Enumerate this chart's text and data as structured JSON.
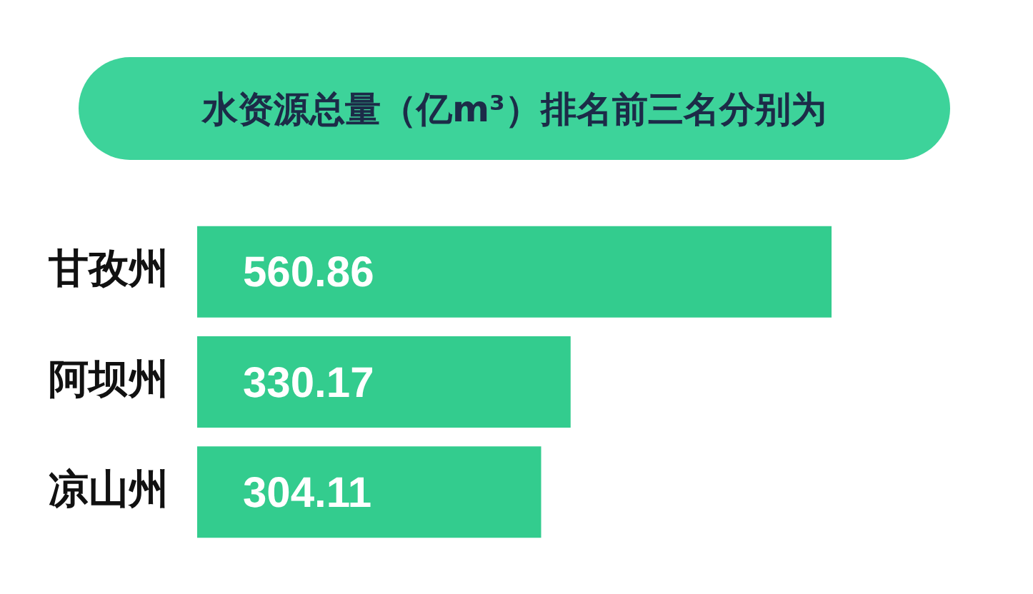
{
  "chart_data": {
    "type": "bar",
    "orientation": "horizontal",
    "title": "水资源总量（亿m³）排名前三名分别为",
    "categories": [
      "甘孜州",
      "阿坝州",
      "凉山州"
    ],
    "values": [
      560.86,
      330.17,
      304.11
    ],
    "color": "#33cc8e",
    "data_labels": true,
    "legend": false,
    "tick_labels": "y"
  }
}
